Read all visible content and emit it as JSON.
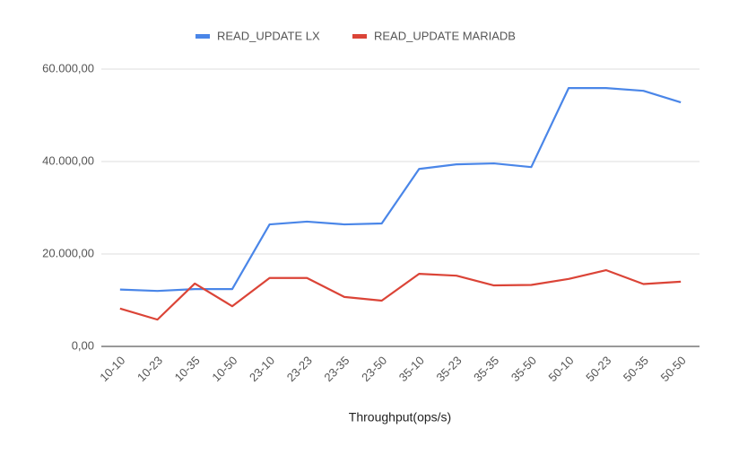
{
  "chart_data": {
    "type": "line",
    "x_label": "Throughput(ops/s)",
    "categories": [
      "10-10",
      "10-23",
      "10-35",
      "10-50",
      "23-10",
      "23-23",
      "23-35",
      "23-50",
      "35-10",
      "35-23",
      "35-35",
      "35-50",
      "50-10",
      "50-23",
      "50-35",
      "50-50"
    ],
    "series": [
      {
        "name": "READ_UPDATE LX",
        "color": "#4a86e8",
        "values": [
          12300,
          12000,
          12400,
          12400,
          26400,
          27000,
          26400,
          26600,
          38400,
          39400,
          39600,
          38800,
          55900,
          55900,
          55300,
          52800
        ]
      },
      {
        "name": "READ_UPDATE MARIADB",
        "color": "#db4437",
        "values": [
          8200,
          5800,
          13600,
          8700,
          14800,
          14800,
          10700,
          9900,
          15700,
          15300,
          13200,
          13300,
          14600,
          16500,
          13500,
          14000
        ]
      }
    ],
    "ylim": [
      0,
      60000
    ],
    "yticks": [
      {
        "value": 0,
        "label": "0,00"
      },
      {
        "value": 20000,
        "label": "20.000,00"
      },
      {
        "value": 40000,
        "label": "40.000,00"
      },
      {
        "value": 60000,
        "label": "60.000,00"
      }
    ],
    "grid": true,
    "legend": "top"
  }
}
